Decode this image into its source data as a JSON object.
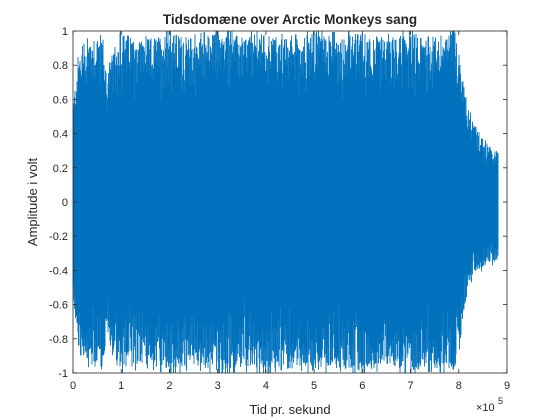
{
  "chart_data": {
    "type": "line",
    "title": "Tidsdomæne over Arctic Monkeys sang",
    "xlabel": "Tid pr. sekund",
    "ylabel": "Amplitude i volt",
    "xlim": [
      0,
      900000
    ],
    "ylim": [
      -1,
      1
    ],
    "x_exponent_label": "×10",
    "x_exponent_power": "5",
    "x_tick_labels": [
      "0",
      "1",
      "2",
      "3",
      "4",
      "5",
      "6",
      "7",
      "8",
      "9"
    ],
    "y_tick_labels": [
      "1",
      "0.8",
      "0.6",
      "0.4",
      "0.2",
      "0",
      "-0.2",
      "-0.4",
      "-0.6",
      "-0.8",
      "-1"
    ],
    "grid": false,
    "series": [
      {
        "color": "#0072BD",
        "x_end": 882000,
        "envelope": {
          "x": [
            0,
            10000,
            40000,
            60000,
            70000,
            100000,
            150000,
            200000,
            250000,
            300000,
            350000,
            400000,
            450000,
            500000,
            550000,
            600000,
            650000,
            700000,
            750000,
            790000,
            800000,
            810000,
            820000,
            830000,
            840000,
            850000,
            860000,
            870000,
            882000
          ],
          "upper": [
            0.55,
            0.85,
            0.98,
            0.98,
            0.75,
            0.99,
            0.95,
            0.99,
            0.96,
            0.99,
            0.97,
            0.99,
            0.95,
            0.99,
            0.97,
            0.99,
            0.96,
            0.99,
            0.97,
            0.99,
            0.9,
            0.7,
            0.55,
            0.5,
            0.42,
            0.38,
            0.35,
            0.3,
            0.3
          ],
          "lower": [
            -0.55,
            -0.85,
            -0.98,
            -0.98,
            -0.8,
            -0.99,
            -0.95,
            -0.99,
            -0.96,
            -0.99,
            -0.97,
            -0.99,
            -0.95,
            -0.99,
            -0.97,
            -0.99,
            -0.96,
            -0.99,
            -0.97,
            -0.99,
            -0.9,
            -0.65,
            -0.5,
            -0.42,
            -0.4,
            -0.38,
            -0.36,
            -0.35,
            -0.35
          ]
        }
      }
    ]
  }
}
